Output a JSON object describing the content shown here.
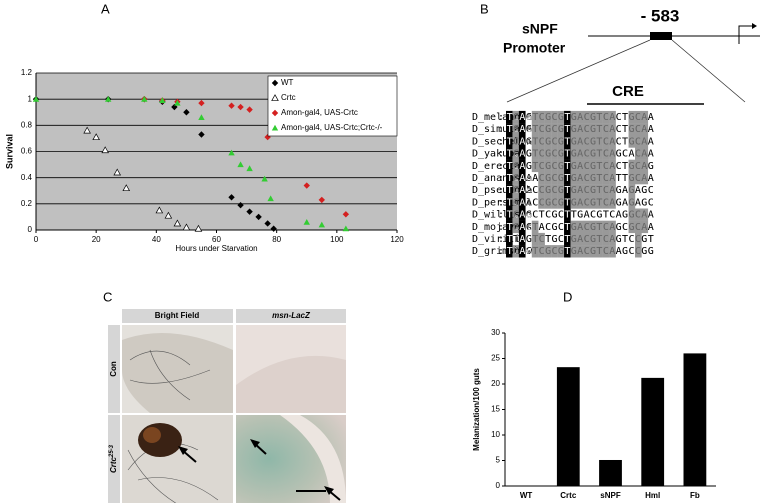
{
  "panel_labels": [
    "A",
    "B",
    "C",
    "D"
  ],
  "chart_data": [
    {
      "type": "scatter",
      "xlabel": "Hours under Starvation",
      "ylabel": "Survival",
      "xlim": [
        0,
        120
      ],
      "xticks": [
        0,
        20,
        40,
        60,
        80,
        100,
        120
      ],
      "ylim": [
        0,
        1.2
      ],
      "yticks": [
        0,
        0.2,
        0.4,
        0.6,
        0.8,
        1,
        1.2
      ],
      "grid": true,
      "legend": "upper right",
      "series": [
        {
          "name": "WT",
          "color": "#000000",
          "marker": "diamond",
          "x": [
            0,
            24,
            36,
            42,
            46,
            50,
            55,
            65,
            68,
            71,
            74,
            77,
            79
          ],
          "values": [
            1,
            1,
            1,
            0.98,
            0.94,
            0.9,
            0.73,
            0.25,
            0.19,
            0.14,
            0.1,
            0.05,
            0.01
          ]
        },
        {
          "name": "Crtc",
          "color": "#000000",
          "marker": "triangle-open",
          "x": [
            17,
            20,
            23,
            27,
            30,
            41,
            44,
            47,
            50,
            54
          ],
          "values": [
            0.76,
            0.71,
            0.61,
            0.44,
            0.32,
            0.15,
            0.11,
            0.05,
            0.02,
            0.01
          ]
        },
        {
          "name": "Amon-gal4, UAS-Crtc",
          "color": "#d42020",
          "marker": "diamond",
          "x": [
            36,
            42,
            47,
            55,
            65,
            68,
            71,
            77,
            90,
            95,
            103
          ],
          "values": [
            1,
            0.99,
            0.98,
            0.97,
            0.95,
            0.94,
            0.92,
            0.71,
            0.34,
            0.23,
            0.12
          ]
        },
        {
          "name": "Amon-gal4, UAS-Crtc;Crtc-/-",
          "color": "#33cc33",
          "marker": "triangle",
          "x": [
            0,
            24,
            36,
            42,
            47,
            55,
            65,
            68,
            71,
            76,
            78,
            90,
            95,
            103
          ],
          "values": [
            1,
            1,
            1,
            0.99,
            0.97,
            0.86,
            0.59,
            0.5,
            0.47,
            0.39,
            0.24,
            0.06,
            0.04,
            0.01
          ]
        }
      ]
    },
    {
      "type": "bar",
      "ylabel": "Melanization/100 guts",
      "categories": [
        "WT",
        "Crtc",
        "sNPF",
        "Hml",
        "Fb"
      ],
      "values": [
        0,
        23.3,
        5.1,
        21.2,
        26
      ],
      "color": "#000000",
      "ylim": [
        0,
        30
      ],
      "yticks": [
        0,
        5,
        10,
        15,
        20,
        25,
        30
      ]
    }
  ],
  "promoter": {
    "gene": "sNPF",
    "label": "Promoter",
    "position": "- 583",
    "motif": "CRE",
    "separator": ":",
    "rows": [
      {
        "name": "D_melanoga",
        "seq": "TCAGTCGCGTGACGTCACTGCAA"
      },
      {
        "name": "D_simulans",
        "seq": "TCAGTCGCGTGACGTCACTGCAA"
      },
      {
        "name": "D_sechelli",
        "seq": "TCAGTCGCGTGACGTCACTGCAA"
      },
      {
        "name": "D_yakuba",
        "seq": "TCAGTCGCGTGACGTCAGCACAA"
      },
      {
        "name": "D_erecta",
        "seq": "TCAGTCGCGTGACGTCACTGCAG"
      },
      {
        "name": "D_ananassa",
        "seq": "TCAAACGCGTGACGTCATTGCAA"
      },
      {
        "name": "D_pseudoob",
        "seq": "TCAACCGCGTGACGTCAGAGAGC"
      },
      {
        "name": "D_persimil",
        "seq": "TCAACCGCGTGACGTCAGAGAGC"
      },
      {
        "name": "D_willisto",
        "seq": "TCAGCTCGCTTGACGTCAGGCAA"
      },
      {
        "name": "D_mojavens",
        "seq": "TCACTACGCTGACGTCAGCGCAA"
      },
      {
        "name": "D_virilis",
        "seq": "TTAGTCTGCTGACGTCAGTCCGT"
      },
      {
        "name": "D_grimshaw",
        "seq": "TCACTCGCGTGACGTCAAGCCGG"
      }
    ]
  },
  "images": {
    "columns": [
      "Bright Field",
      "msn-LacZ"
    ],
    "rows": [
      {
        "text": "Con"
      },
      {
        "text": "Crtc",
        "sup": "25-3"
      }
    ]
  }
}
